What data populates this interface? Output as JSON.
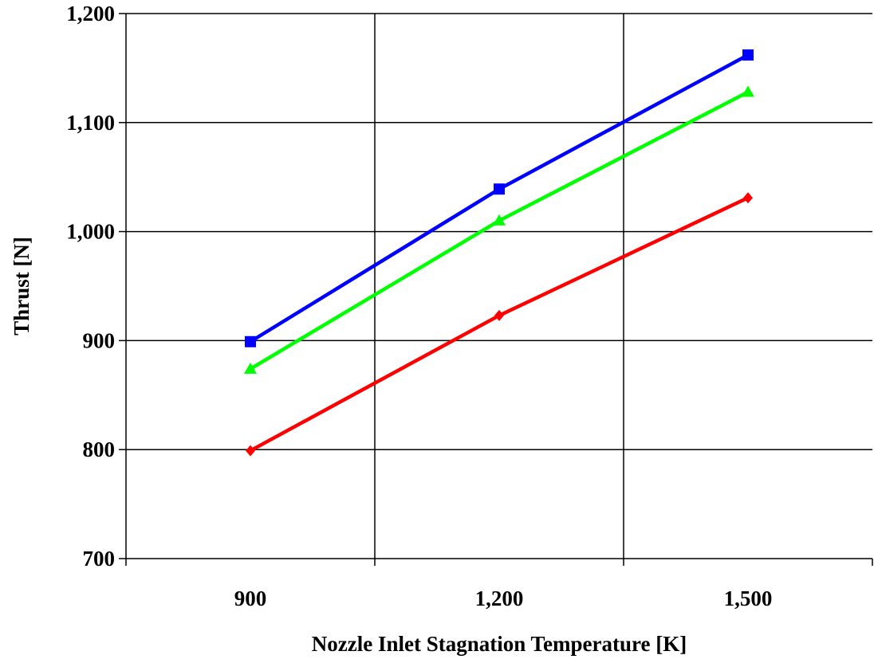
{
  "chart_data": {
    "type": "line",
    "title": "",
    "xlabel": "Nozzle Inlet Stagnation Temperature [K]",
    "ylabel": "Thrust [N]",
    "x": [
      900,
      1200,
      1500
    ],
    "x_tick_labels": [
      "900",
      "1,200",
      "1,500"
    ],
    "y_tick_values": [
      700,
      800,
      900,
      1000,
      1100,
      1200
    ],
    "y_tick_labels": [
      "700",
      "800",
      "900",
      "1,000",
      "1,100",
      "1,200"
    ],
    "ylim": [
      700,
      1200
    ],
    "grid": true,
    "series": [
      {
        "color": "#0000ff",
        "marker": "square",
        "values": [
          899,
          1039,
          1162
        ]
      },
      {
        "color": "#00ff00",
        "marker": "triangle",
        "values": [
          874,
          1010,
          1128
        ]
      },
      {
        "color": "#ff0000",
        "marker": "diamond",
        "values": [
          799,
          923,
          1031
        ]
      }
    ]
  }
}
